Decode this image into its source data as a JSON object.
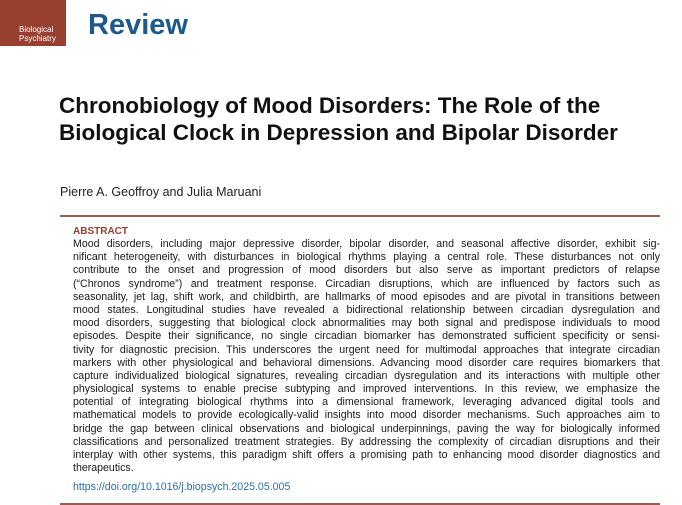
{
  "journal": {
    "logo_lines": [
      "Biological",
      "Psychiatry"
    ],
    "section": "Review"
  },
  "title": "Chronobiology of Mood Disorders: The Role of the Biological Clock in Depression and Bipolar Disorder",
  "authors": "Pierre A. Geoffroy and Julia Maruani",
  "abstract": {
    "heading": "ABSTRACT",
    "lines": [
      "Mood disorders, including major depressive disorder, bipolar disorder, and seasonal affective disorder, exhibit sig-",
      "nificant heterogeneity, with disturbances in biological rhythms playing a central role. These disturbances not only",
      "contribute to the onset and progression of mood disorders but also serve as important predictors of relapse",
      "(“Chronos syndrome”) and treatment response. Circadian disruptions, which are influenced by factors such as",
      "seasonality, jet lag, shift work, and childbirth, are hallmarks of mood episodes and are pivotal in transitions between",
      "mood states. Longitudinal studies have revealed a bidirectional relationship between circadian dysregulation and",
      "mood disorders, suggesting that biological clock abnormalities may both signal and predispose individuals to mood",
      "episodes. Despite their significance, no single circadian biomarker has demonstrated sufficient specificity or sensi-",
      "tivity for diagnostic precision. This underscores the urgent need for multimodal approaches that integrate circadian",
      "markers with other physiological and behavioral dimensions. Advancing mood disorder care requires biomarkers that",
      "capture individualized biological signatures, revealing circadian dysregulation and its interactions with multiple other",
      "physiological systems to enable precise subtyping and improved interventions. In this review, we emphasize the",
      "potential of integrating biological rhythms into a dimensional framework, leveraging advanced digital tools and",
      "mathematical models to provide ecologically-valid insights into mood disorder mechanisms. Such approaches aim to",
      "bridge the gap between clinical observations and biological underpinnings, paving the way for biologically informed",
      "classifications and personalized treatment strategies. By addressing the complexity of circadian disruptions and their",
      "interplay with other systems, this paradigm shift offers a promising path to enhancing mood disorder diagnostics and",
      "therapeutics."
    ]
  },
  "doi": "https://doi.org/10.1016/j.biopsych.2025.05.005"
}
